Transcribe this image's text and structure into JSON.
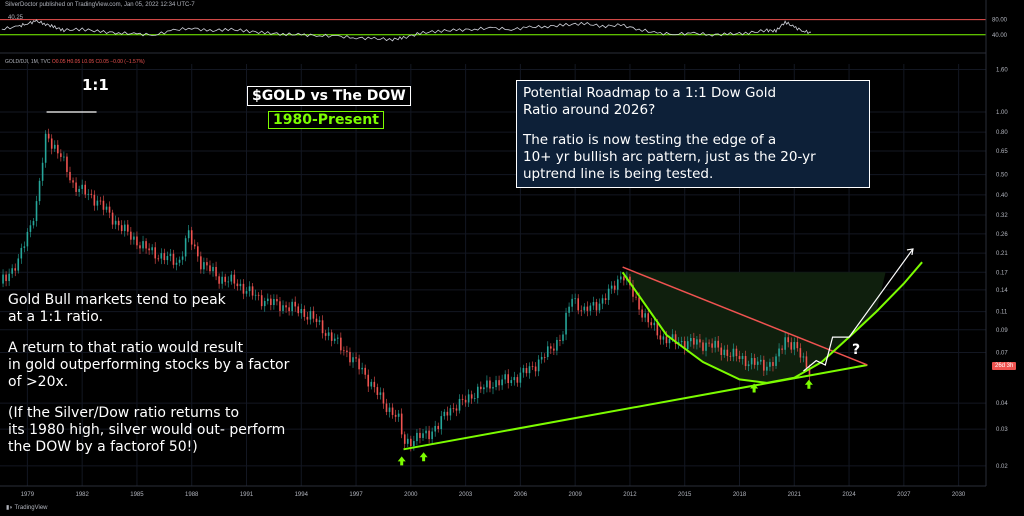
{
  "header": {
    "publisher_line": "SilverDoctor published on TradingView.com, Jan 05, 2022 12:34 UTC-7",
    "symbol_line": "GOLD/DJI, 1M, TVC",
    "symbol_values": "O0.05 H0.05 L0.05 C0.05 −0.00 (−1.57%)",
    "rsi_value": "40.25",
    "price_badge": "26d 3h"
  },
  "colors": {
    "background": "#000000",
    "up_candle": "#26a69a",
    "down_candle": "#ef5350",
    "trendline": "#7CFC00",
    "arc": "#7CFC00",
    "resistance": "#ef5350",
    "rsi_line": "#d1d4dc",
    "rsi_upper": "#ef5350",
    "rsi_lower": "#7CFC00"
  },
  "annotations": {
    "one_to_one": "1:1",
    "title": "$GOLD vs The DOW",
    "subtitle": "1980-Present",
    "roadmap_line1": "Potential Roadmap to a 1:1 Dow Gold",
    "roadmap_line2": "Ratio around 2026?",
    "roadmap_line3": "The ratio is now testing the edge of a",
    "roadmap_line4": "10+ yr bullish arc pattern, just as the 20-yr",
    "roadmap_line5": "uptrend line is being tested.",
    "left_line1": "Gold Bull markets tend to peak",
    "left_line2": "at a 1:1 ratio.",
    "left_line3": "A return to that ratio would result",
    "left_line4": "in gold outperforming stocks by a factor",
    "left_line5": "of >20x.",
    "left_line6": "(If the Silver/Dow ratio returns to",
    "left_line7": "its 1980 high, silver would out- perform",
    "left_line8": "the  DOW by a factorof 50!)",
    "question": "?"
  },
  "footer": {
    "brand": "TradingView"
  },
  "chart_data": [
    {
      "type": "line",
      "name": "RSI",
      "ylim": [
        0,
        100
      ],
      "levels": [
        80,
        40
      ],
      "level_labels": [
        "80.00",
        "40.00"
      ],
      "x": [
        1977.6,
        1978.5,
        1979.0,
        1979.5,
        1980.0,
        1980.5,
        1981.0,
        1982.0,
        1983.0,
        1984.0,
        1985.0,
        1986.0,
        1987.0,
        1988.0,
        1989.0,
        1990.0,
        1991.0,
        1992.0,
        1993.0,
        1994.0,
        1995.0,
        1996.0,
        1997.0,
        1998.0,
        1999.0,
        1999.6,
        2000.5,
        2001.5,
        2002.5,
        2003.5,
        2004.5,
        2005.5,
        2006.5,
        2007.5,
        2008.5,
        2009.5,
        2010.5,
        2011.5,
        2012.5,
        2013.5,
        2014.5,
        2015.5,
        2016.5,
        2017.5,
        2018.5,
        2019.5,
        2020.0,
        2020.5,
        2021.0,
        2021.5,
        2022.0
      ],
      "values": [
        55,
        62,
        70,
        76,
        68,
        60,
        52,
        55,
        48,
        45,
        42,
        40,
        52,
        58,
        50,
        55,
        50,
        45,
        42,
        40,
        38,
        36,
        32,
        30,
        28,
        32,
        44,
        50,
        52,
        55,
        58,
        54,
        60,
        62,
        66,
        70,
        62,
        66,
        54,
        44,
        42,
        44,
        40,
        42,
        45,
        52,
        50,
        74,
        60,
        50,
        44
      ]
    },
    {
      "type": "line",
      "name": "GOLD/DJI",
      "ylabel": "",
      "scale": "log",
      "ylim": [
        0.016,
        1.7
      ],
      "xlim": [
        1977.5,
        2031.5
      ],
      "y_ticks": [
        1.6,
        1.0,
        0.8,
        0.65,
        0.5,
        0.4,
        0.32,
        0.26,
        0.21,
        0.17,
        0.14,
        0.11,
        0.09,
        0.07,
        0.04,
        0.03,
        0.02
      ],
      "y_tick_labels": [
        "1.60",
        "1.00",
        "0.80",
        "0.65",
        "0.50",
        "0.40",
        "0.32",
        "0.26",
        "0.21",
        "0.17",
        "0.14",
        "0.11",
        "0.09",
        "0.07",
        "0.04",
        "0.03",
        "0.02"
      ],
      "x_ticks": [
        1979,
        1982,
        1985,
        1988,
        1991,
        1994,
        1997,
        2000,
        2003,
        2006,
        2009,
        2012,
        2015,
        2018,
        2021,
        2024,
        2027,
        2030
      ],
      "x_tick_labels": [
        "1979",
        "1982",
        "1985",
        "1988",
        "1991",
        "1994",
        "1997",
        "2000",
        "2003",
        "2006",
        "2009",
        "2012",
        "2015",
        "2018",
        "2021",
        "2024",
        "2027",
        "2030"
      ],
      "x": [
        1977.5,
        1978.0,
        1978.5,
        1979.0,
        1979.5,
        1979.8,
        1980.05,
        1980.3,
        1980.8,
        1981.5,
        1982.3,
        1982.8,
        1983.5,
        1984.5,
        1985.5,
        1986.5,
        1987.3,
        1987.8,
        1988.5,
        1989.5,
        1990.5,
        1991.5,
        1992.5,
        1993.5,
        1994.5,
        1995.5,
        1996.5,
        1997.5,
        1998.5,
        1999.3,
        1999.6,
        2000.3,
        2001.0,
        2001.5,
        2002.0,
        2002.8,
        2003.5,
        2004.5,
        2005.5,
        2006.5,
        2007.5,
        2008.3,
        2008.8,
        2009.5,
        2010.5,
        2011.0,
        2011.6,
        2012.3,
        2013.0,
        2013.8,
        2014.5,
        2015.5,
        2016.3,
        2017.0,
        2018.0,
        2018.8,
        2019.5,
        2020.0,
        2020.5,
        2021.0,
        2021.5,
        2021.9
      ],
      "values": [
        0.15,
        0.17,
        0.19,
        0.26,
        0.36,
        0.55,
        0.8,
        0.72,
        0.62,
        0.45,
        0.4,
        0.38,
        0.32,
        0.26,
        0.22,
        0.2,
        0.19,
        0.26,
        0.19,
        0.16,
        0.15,
        0.13,
        0.12,
        0.115,
        0.105,
        0.085,
        0.07,
        0.055,
        0.04,
        0.034,
        0.026,
        0.027,
        0.029,
        0.031,
        0.037,
        0.04,
        0.045,
        0.05,
        0.052,
        0.058,
        0.07,
        0.085,
        0.13,
        0.11,
        0.125,
        0.14,
        0.17,
        0.125,
        0.098,
        0.082,
        0.079,
        0.078,
        0.077,
        0.072,
        0.066,
        0.062,
        0.061,
        0.064,
        0.082,
        0.075,
        0.064,
        0.057
      ],
      "trendline": {
        "x": [
          1999.6,
          2025.0
        ],
        "y": [
          0.024,
          0.061
        ]
      },
      "resistance": {
        "x": [
          2011.6,
          2025.0
        ],
        "y": [
          0.18,
          0.061
        ]
      },
      "arc": {
        "x": [
          2011.6,
          2014.0,
          2016.0,
          2018.0,
          2019.5,
          2021.0,
          2022.5,
          2024.0,
          2025.5,
          2027.0,
          2028.0
        ],
        "y": [
          0.17,
          0.085,
          0.063,
          0.052,
          0.05,
          0.053,
          0.063,
          0.083,
          0.11,
          0.15,
          0.19
        ]
      },
      "projection": {
        "x": [
          2021.5,
          2022.2,
          2022.7,
          2023.1,
          2024.0,
          2027.5
        ],
        "y": [
          0.057,
          0.064,
          0.061,
          0.083,
          0.083,
          0.22
        ]
      },
      "markers": [
        {
          "x": 1999.5,
          "y": 0.021
        },
        {
          "x": 2000.7,
          "y": 0.022
        },
        {
          "x": 2018.8,
          "y": 0.047
        },
        {
          "x": 2021.8,
          "y": 0.049
        }
      ],
      "peak_marker": {
        "x": 1980.05,
        "y": 1.0
      }
    }
  ]
}
